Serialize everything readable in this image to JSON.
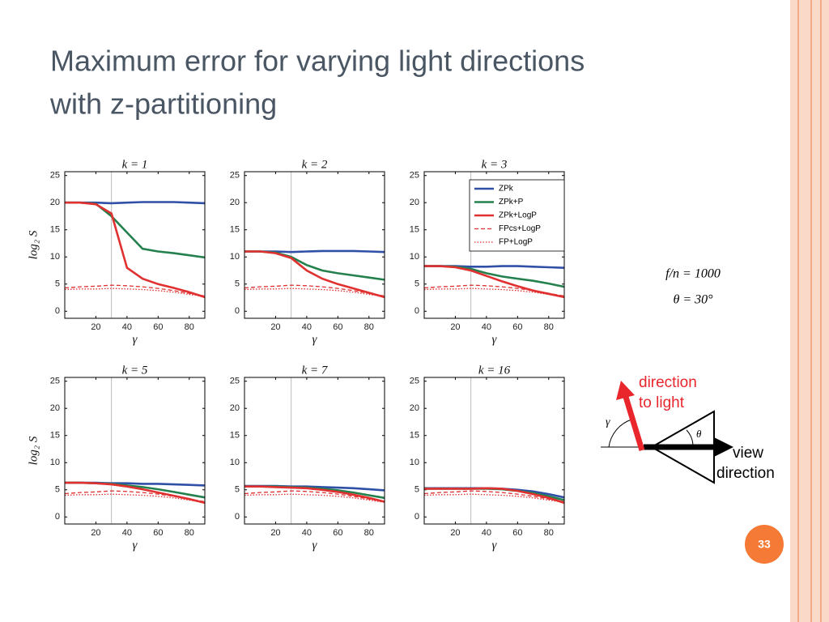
{
  "slide": {
    "title_lines": [
      "Maximum error for varying light directions",
      "with z-partitioning"
    ],
    "page_number": "33",
    "notes": [
      "f/n = 1000",
      "θ = 30°"
    ],
    "diagram": {
      "light_label": [
        "direction",
        "to light"
      ],
      "view_label": [
        "view",
        "direction"
      ],
      "angle_gamma": "γ",
      "angle_theta": "θ"
    }
  },
  "chart_data": [
    {
      "type": "line",
      "title": "k = 1",
      "xlabel": "γ",
      "ylabel": "log₂ S",
      "xlim": [
        0,
        90
      ],
      "ylim": [
        -1.3,
        25.7
      ],
      "xticks": [
        20,
        40,
        60,
        80
      ],
      "yticks": [
        0,
        5,
        10,
        15,
        20,
        25
      ],
      "vline": 30,
      "x": [
        0,
        10,
        20,
        30,
        40,
        50,
        60,
        70,
        80,
        90
      ],
      "series": [
        {
          "color": "#3050a8",
          "style": "solid",
          "values": [
            20,
            20,
            20,
            19.9,
            20,
            20.1,
            20.1,
            20.1,
            20,
            19.9
          ]
        },
        {
          "color": "#24804c",
          "style": "solid",
          "values": [
            20,
            20,
            19.8,
            17.5,
            14.5,
            11.5,
            11,
            10.7,
            10.3,
            9.9
          ]
        },
        {
          "color": "#e03030",
          "style": "solid",
          "values": [
            20,
            20,
            19.7,
            18,
            8,
            6,
            5,
            4.3,
            3.5,
            2.6
          ]
        },
        {
          "color": "#e03030",
          "style": "dashed",
          "values": [
            4.3,
            4.5,
            4.6,
            4.8,
            4.7,
            4.5,
            4.2,
            3.8,
            3.3,
            2.8
          ]
        },
        {
          "color": "#e03030",
          "style": "dotted",
          "values": [
            4,
            4.1,
            4.1,
            4.2,
            4.1,
            4,
            3.8,
            3.5,
            3.1,
            2.7
          ]
        }
      ]
    },
    {
      "type": "line",
      "title": "k = 2",
      "xlabel": "γ",
      "xlim": [
        0,
        90
      ],
      "ylim": [
        -1.3,
        25.7
      ],
      "xticks": [
        20,
        40,
        60,
        80
      ],
      "yticks": [
        0,
        5,
        10,
        15,
        20,
        25
      ],
      "vline": 30,
      "x": [
        0,
        10,
        20,
        30,
        40,
        50,
        60,
        70,
        80,
        90
      ],
      "series": [
        {
          "color": "#3050a8",
          "style": "solid",
          "values": [
            11,
            11,
            11,
            10.9,
            11,
            11.1,
            11.1,
            11.1,
            11,
            10.9
          ]
        },
        {
          "color": "#24804c",
          "style": "solid",
          "values": [
            11,
            11,
            10.8,
            10,
            8.5,
            7.5,
            7,
            6.6,
            6.2,
            5.8
          ]
        },
        {
          "color": "#e03030",
          "style": "solid",
          "values": [
            11,
            11,
            10.7,
            9.8,
            7.5,
            6,
            5,
            4.2,
            3.4,
            2.6
          ]
        },
        {
          "color": "#e03030",
          "style": "dashed",
          "values": [
            4.3,
            4.5,
            4.6,
            4.8,
            4.7,
            4.5,
            4.2,
            3.8,
            3.3,
            2.8
          ]
        },
        {
          "color": "#e03030",
          "style": "dotted",
          "values": [
            4,
            4.1,
            4.1,
            4.2,
            4.1,
            4,
            3.8,
            3.5,
            3.1,
            2.7
          ]
        }
      ]
    },
    {
      "type": "line",
      "title": "k = 3",
      "xlabel": "γ",
      "xlim": [
        0,
        90
      ],
      "ylim": [
        -1.3,
        25.7
      ],
      "xticks": [
        20,
        40,
        60,
        80
      ],
      "yticks": [
        0,
        5,
        10,
        15,
        20,
        25
      ],
      "vline": 30,
      "legend": "upper right",
      "x": [
        0,
        10,
        20,
        30,
        40,
        50,
        60,
        70,
        80,
        90
      ],
      "series": [
        {
          "name": "ZPk",
          "color": "#3050a8",
          "style": "solid",
          "values": [
            8.3,
            8.3,
            8.3,
            8.2,
            8.2,
            8.3,
            8.3,
            8.2,
            8.1,
            8
          ]
        },
        {
          "name": "ZPk+P",
          "color": "#24804c",
          "style": "solid",
          "values": [
            8.3,
            8.3,
            8.2,
            7.8,
            7,
            6.4,
            6,
            5.6,
            5.1,
            4.5
          ]
        },
        {
          "name": "ZPk+LogP",
          "color": "#e03030",
          "style": "solid",
          "values": [
            8.3,
            8.3,
            8.1,
            7.5,
            6.5,
            5.5,
            4.6,
            3.8,
            3.2,
            2.6
          ]
        },
        {
          "name": "FPcs+LogP",
          "color": "#e03030",
          "style": "dashed",
          "values": [
            4.3,
            4.5,
            4.6,
            4.8,
            4.7,
            4.5,
            4.2,
            3.8,
            3.3,
            2.8
          ]
        },
        {
          "name": "FP+LogP",
          "color": "#e03030",
          "style": "dotted",
          "values": [
            4,
            4.1,
            4.1,
            4.2,
            4.1,
            4,
            3.8,
            3.5,
            3.1,
            2.7
          ]
        }
      ]
    },
    {
      "type": "line",
      "title": "k = 5",
      "xlabel": "γ",
      "ylabel": "log₂ S",
      "xlim": [
        0,
        90
      ],
      "ylim": [
        -1.3,
        25.7
      ],
      "xticks": [
        20,
        40,
        60,
        80
      ],
      "yticks": [
        0,
        5,
        10,
        15,
        20,
        25
      ],
      "vline": 30,
      "x": [
        0,
        10,
        20,
        30,
        40,
        50,
        60,
        70,
        80,
        90
      ],
      "series": [
        {
          "color": "#3050a8",
          "style": "solid",
          "values": [
            6.3,
            6.3,
            6.3,
            6.2,
            6.2,
            6.1,
            6.1,
            6,
            5.9,
            5.8
          ]
        },
        {
          "color": "#24804c",
          "style": "solid",
          "values": [
            6.3,
            6.3,
            6.2,
            6.1,
            5.8,
            5.5,
            5.1,
            4.6,
            4.1,
            3.6
          ]
        },
        {
          "color": "#e03030",
          "style": "solid",
          "values": [
            6.3,
            6.3,
            6.2,
            6,
            5.6,
            5.1,
            4.5,
            3.9,
            3.3,
            2.6
          ]
        },
        {
          "color": "#e03030",
          "style": "dashed",
          "values": [
            4.3,
            4.5,
            4.6,
            4.8,
            4.7,
            4.5,
            4.2,
            3.8,
            3.3,
            2.8
          ]
        },
        {
          "color": "#e03030",
          "style": "dotted",
          "values": [
            4,
            4.1,
            4.1,
            4.2,
            4.1,
            4,
            3.8,
            3.5,
            3.1,
            2.7
          ]
        }
      ]
    },
    {
      "type": "line",
      "title": "k = 7",
      "xlabel": "γ",
      "xlim": [
        0,
        90
      ],
      "ylim": [
        -1.3,
        25.7
      ],
      "xticks": [
        20,
        40,
        60,
        80
      ],
      "yticks": [
        0,
        5,
        10,
        15,
        20,
        25
      ],
      "vline": 30,
      "x": [
        0,
        10,
        20,
        30,
        40,
        50,
        60,
        70,
        80,
        90
      ],
      "series": [
        {
          "color": "#3050a8",
          "style": "solid",
          "values": [
            5.7,
            5.7,
            5.7,
            5.6,
            5.6,
            5.5,
            5.4,
            5.3,
            5.1,
            4.9
          ]
        },
        {
          "color": "#24804c",
          "style": "solid",
          "values": [
            5.6,
            5.6,
            5.6,
            5.5,
            5.4,
            5.2,
            4.9,
            4.5,
            4,
            3.5
          ]
        },
        {
          "color": "#e03030",
          "style": "solid",
          "values": [
            5.6,
            5.6,
            5.5,
            5.4,
            5.3,
            5,
            4.6,
            4.1,
            3.5,
            2.8
          ]
        },
        {
          "color": "#e03030",
          "style": "dashed",
          "values": [
            4.3,
            4.5,
            4.6,
            4.8,
            4.7,
            4.5,
            4.2,
            3.8,
            3.3,
            2.8
          ]
        },
        {
          "color": "#e03030",
          "style": "dotted",
          "values": [
            4,
            4.1,
            4.1,
            4.2,
            4.1,
            4,
            3.8,
            3.5,
            3.1,
            2.7
          ]
        }
      ]
    },
    {
      "type": "line",
      "title": "k = 16",
      "xlabel": "γ",
      "xlim": [
        0,
        90
      ],
      "ylim": [
        -1.3,
        25.7
      ],
      "xticks": [
        20,
        40,
        60,
        80
      ],
      "yticks": [
        0,
        5,
        10,
        15,
        20,
        25
      ],
      "vline": 30,
      "x": [
        0,
        10,
        20,
        30,
        40,
        50,
        60,
        70,
        80,
        90
      ],
      "series": [
        {
          "color": "#3050a8",
          "style": "solid",
          "values": [
            5.3,
            5.3,
            5.3,
            5.3,
            5.3,
            5.2,
            5,
            4.7,
            4.2,
            3.6
          ]
        },
        {
          "color": "#24804c",
          "style": "solid",
          "values": [
            5.2,
            5.2,
            5.2,
            5.2,
            5.2,
            5.1,
            4.8,
            4.4,
            3.8,
            3.1
          ]
        },
        {
          "color": "#e03030",
          "style": "solid",
          "values": [
            5.2,
            5.2,
            5.2,
            5.2,
            5.3,
            5.2,
            4.8,
            4.2,
            3.5,
            2.6
          ]
        },
        {
          "color": "#e03030",
          "style": "dashed",
          "values": [
            4.3,
            4.5,
            4.6,
            4.8,
            4.7,
            4.5,
            4.2,
            3.8,
            3.3,
            2.8
          ]
        },
        {
          "color": "#e03030",
          "style": "dotted",
          "values": [
            4,
            4.1,
            4.1,
            4.2,
            4.1,
            4,
            3.8,
            3.5,
            3.1,
            2.7
          ]
        }
      ]
    }
  ]
}
